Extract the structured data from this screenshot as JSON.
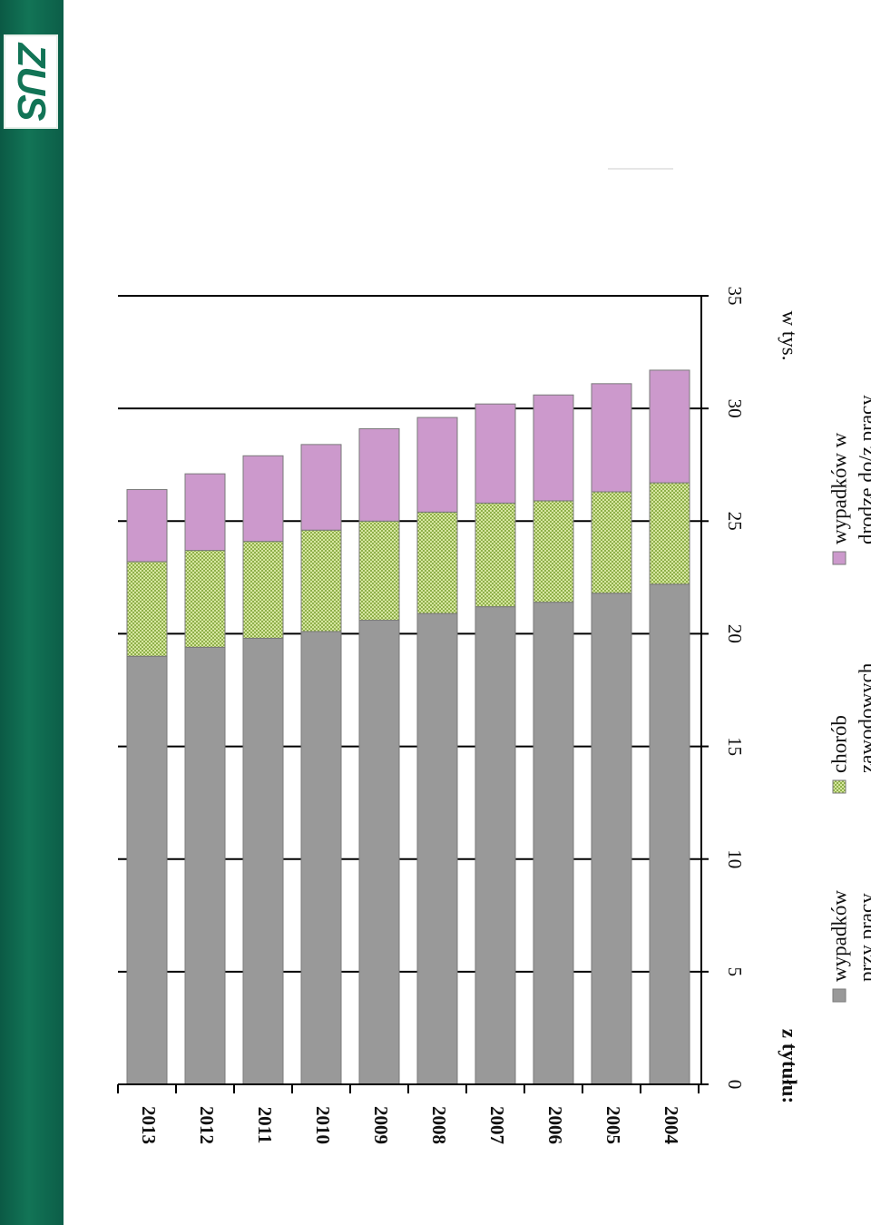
{
  "branding": {
    "logo_text": "ZUS",
    "sidebar_color": "#127456"
  },
  "chart_data": {
    "type": "bar",
    "orientation": "horizontal",
    "stacked": true,
    "rotated_page": true,
    "categories": [
      "2013",
      "2012",
      "2011",
      "2010",
      "2009",
      "2008",
      "2007",
      "2006",
      "2005",
      "2004"
    ],
    "series": [
      {
        "name": "wypadków przy pracy",
        "color": "#999999",
        "pattern": "solid",
        "values": [
          19.0,
          19.4,
          19.8,
          20.1,
          20.6,
          20.9,
          21.2,
          21.4,
          21.8,
          22.2
        ]
      },
      {
        "name": "chorób zawodowych",
        "color": "#cde08a",
        "pattern": "checker",
        "values": [
          4.2,
          4.3,
          4.3,
          4.5,
          4.4,
          4.5,
          4.6,
          4.5,
          4.5,
          4.5
        ]
      },
      {
        "name": "wypadków w drodze do/z pracy",
        "color": "#cc99cc",
        "pattern": "solid",
        "values": [
          3.2,
          3.4,
          3.8,
          3.8,
          4.1,
          4.2,
          4.4,
          4.7,
          4.8,
          5.0
        ]
      }
    ],
    "xlim": [
      0,
      35
    ],
    "ticks": [
      "0",
      "5",
      "10",
      "15",
      "20",
      "25",
      "30",
      "35"
    ],
    "unit_label": "w tys.",
    "legend_title": "z tytułu:",
    "legend_position": "bottom",
    "legend_lines": [
      [
        "wypadków",
        "przy pracy"
      ],
      [
        "chorób",
        "zawodowych"
      ],
      [
        "wypadków w",
        "drodze do/z pracy"
      ]
    ],
    "grid": true
  }
}
